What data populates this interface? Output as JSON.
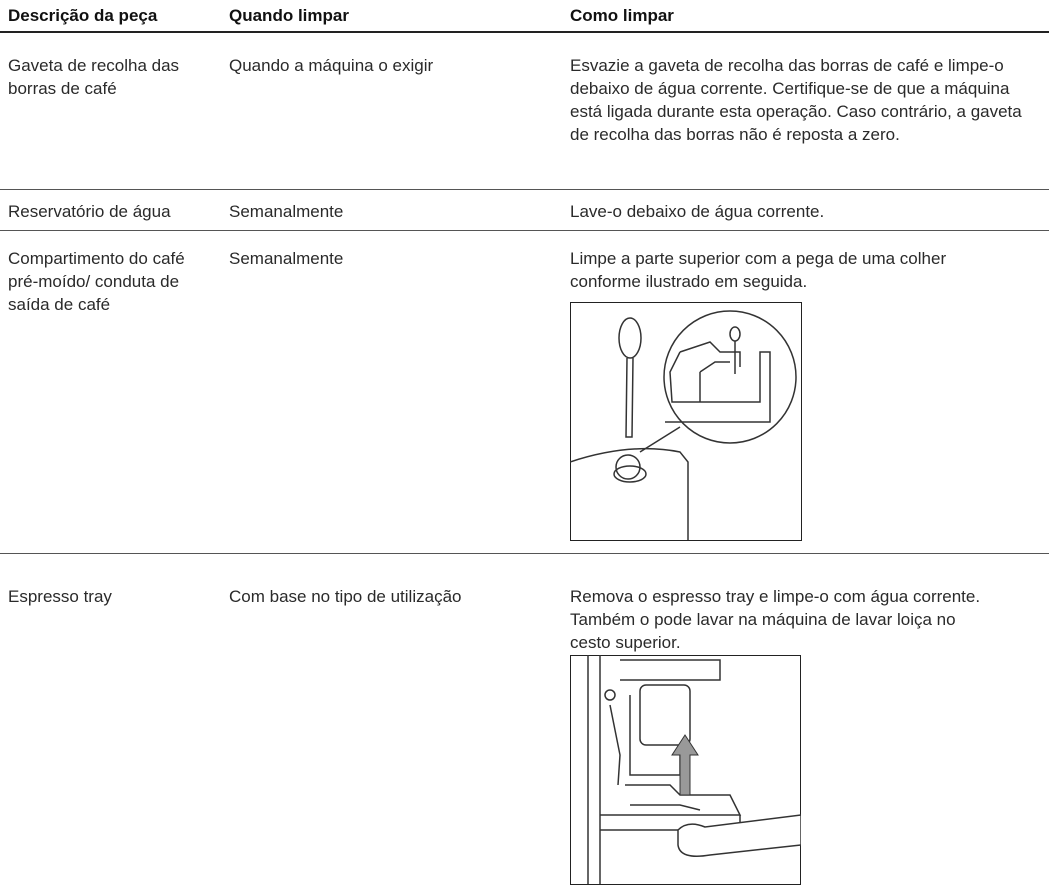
{
  "table": {
    "headers": [
      "Descrição da peça",
      "Quando limpar",
      "Como limpar"
    ],
    "rows": [
      [
        "Gaveta de recolha das borras de café",
        "Quando a máquina o exigir",
        "Esvazie a gaveta de recolha das borras de café e limpe-o debaixo de água corrente. Certifique-se de que a máquina está ligada durante esta operação. Caso contrário, a gaveta de recolha das borras não é reposta a zero."
      ],
      [
        "Reservatório de água",
        "Semanalmente",
        "Lave-o debaixo de água corrente."
      ],
      [
        "Compartimento do café pré-moído/ conduta de saída de café",
        "Semanalmente",
        "Limpe a parte superior com a pega de uma colher conforme ilustrado em seguida."
      ],
      [
        "Espresso tray",
        "Com base no tipo de utilização",
        "Remova o espresso tray e limpe-o com água corrente. Também o pode lavar na máquina de lavar loiça no cesto superior."
      ]
    ]
  }
}
